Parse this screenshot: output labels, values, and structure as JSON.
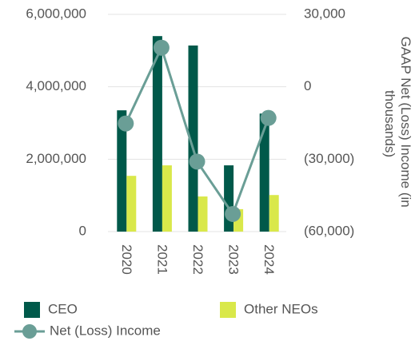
{
  "chart_data": {
    "type": "bar_line",
    "y2label": "GAAP Net (Loss) Income (in thousands)",
    "categories": [
      "2020",
      "2021",
      "2022",
      "2023",
      "2024"
    ],
    "series": [
      {
        "name": "CEO",
        "type": "bar",
        "color": "#00594a",
        "values": [
          3350000,
          5400000,
          5140000,
          1830000,
          3260000
        ]
      },
      {
        "name": "Other NEOs",
        "type": "bar",
        "color": "#d9e84a",
        "values": [
          1540000,
          1830000,
          970000,
          620000,
          1010000
        ]
      },
      {
        "name": "Net (Loss) Income",
        "type": "line",
        "axis": "y2",
        "color": "#6a9e96",
        "values": [
          -15200,
          16200,
          -31000,
          -52700,
          -12900
        ]
      }
    ],
    "ylim": [
      0,
      6000000
    ],
    "yticks": [
      0,
      {
        "value": 2000000,
        "label": "2,000,000"
      },
      {
        "value": 4000000,
        "label": "4,000,000"
      },
      {
        "value": 6000000,
        "label": "6,000,000"
      }
    ],
    "y2lim": [
      -60000,
      30000
    ],
    "y2ticks": [
      {
        "value": -60000,
        "label": "(60,000)"
      },
      {
        "value": -30000,
        "label": "(30,000)"
      },
      0,
      {
        "value": 30000,
        "label": "30,000"
      }
    ],
    "grid": true
  }
}
